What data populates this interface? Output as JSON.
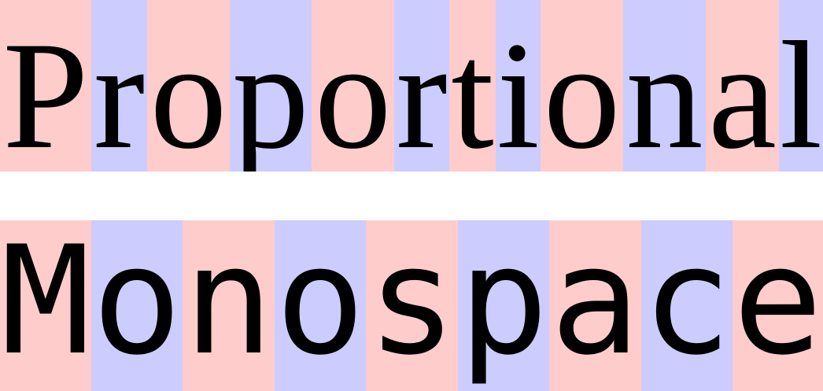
{
  "colors": {
    "pink": "#ffcccc",
    "lavender": "#ccccff",
    "text": "#000000",
    "background": "#ffffff"
  },
  "proportional": {
    "word": "Proportional",
    "letters": [
      "P",
      "r",
      "o",
      "p",
      "o",
      "r",
      "t",
      "i",
      "o",
      "n",
      "a",
      "l"
    ]
  },
  "monospace": {
    "word": "Monospace",
    "letters": [
      "M",
      "o",
      "n",
      "o",
      "s",
      "p",
      "a",
      "c",
      "e"
    ]
  }
}
